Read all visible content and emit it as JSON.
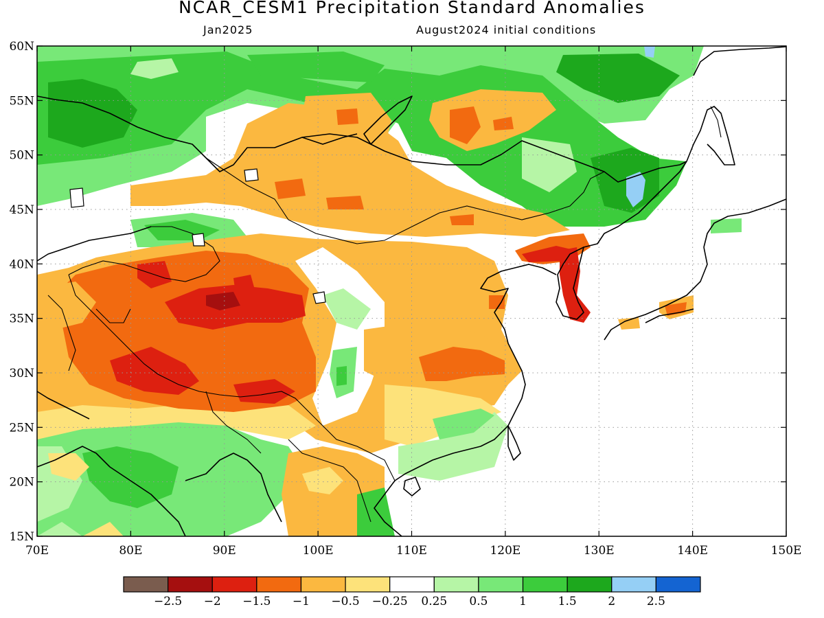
{
  "title": "NCAR_CESM1 Precipitation Standard Anomalies",
  "subtitle_left": "Jan2025",
  "subtitle_right": "August2024 initial conditions",
  "axes": {
    "lon_ticks": [
      "70E",
      "80E",
      "90E",
      "100E",
      "110E",
      "120E",
      "130E",
      "140E",
      "150E"
    ],
    "lat_ticks": [
      "60N",
      "55N",
      "50N",
      "45N",
      "40N",
      "35N",
      "30N",
      "25N",
      "20N",
      "15N"
    ],
    "lon_range": [
      70,
      150
    ],
    "lat_range": [
      15,
      60
    ],
    "grid": true
  },
  "colorbar": {
    "colors": [
      "#7a5c4e",
      "#a50f0f",
      "#dd2010",
      "#f26a10",
      "#fbb840",
      "#fde27a",
      "#ffffff",
      "#b6f5a6",
      "#78e878",
      "#3ccc3c",
      "#1da81d",
      "#95cff5",
      "#1464d2"
    ],
    "labels": [
      "−2.5",
      "−2",
      "−1.5",
      "−1",
      "−0.5",
      "−0.25",
      "0.25",
      "0.5",
      "1",
      "1.5",
      "2",
      "2.5"
    ]
  },
  "map_data": {
    "type": "filled-contour-map",
    "region": "East and Central Asia",
    "levels": [
      -2.5,
      -2,
      -1.5,
      -1,
      -0.5,
      -0.25,
      0.25,
      0.5,
      1,
      1.5,
      2,
      2.5
    ],
    "features": [
      {
        "name": "central-siberia",
        "center": [
          95,
          55
        ],
        "anomaly": 1.2
      },
      {
        "name": "kazakhstan-north",
        "center": [
          75,
          48
        ],
        "anomaly": 1.0
      },
      {
        "name": "tibet-plateau",
        "center": [
          88,
          34
        ],
        "anomaly": -1.6
      },
      {
        "name": "himalaya",
        "center": [
          85,
          29
        ],
        "anomaly": -1.7
      },
      {
        "name": "central-china",
        "center": [
          110,
          33
        ],
        "anomaly": -0.6
      },
      {
        "name": "yangtze",
        "center": [
          116,
          30
        ],
        "anomaly": -1.2
      },
      {
        "name": "mongolia",
        "center": [
          100,
          46
        ],
        "anomaly": -0.6
      },
      {
        "name": "korea",
        "center": [
          127,
          37
        ],
        "anomaly": -1.8
      },
      {
        "name": "baikal-east",
        "center": [
          114,
          52
        ],
        "anomaly": -1.1
      },
      {
        "name": "manchuria",
        "center": [
          125,
          50
        ],
        "anomaly": 1.4
      },
      {
        "name": "lake-khanka",
        "center": [
          133,
          46
        ],
        "anomaly": 2.1
      },
      {
        "name": "india-north",
        "center": [
          85,
          22
        ],
        "anomaly": 0.8
      },
      {
        "name": "indochina",
        "center": [
          102,
          19
        ],
        "anomaly": -0.6
      }
    ]
  }
}
